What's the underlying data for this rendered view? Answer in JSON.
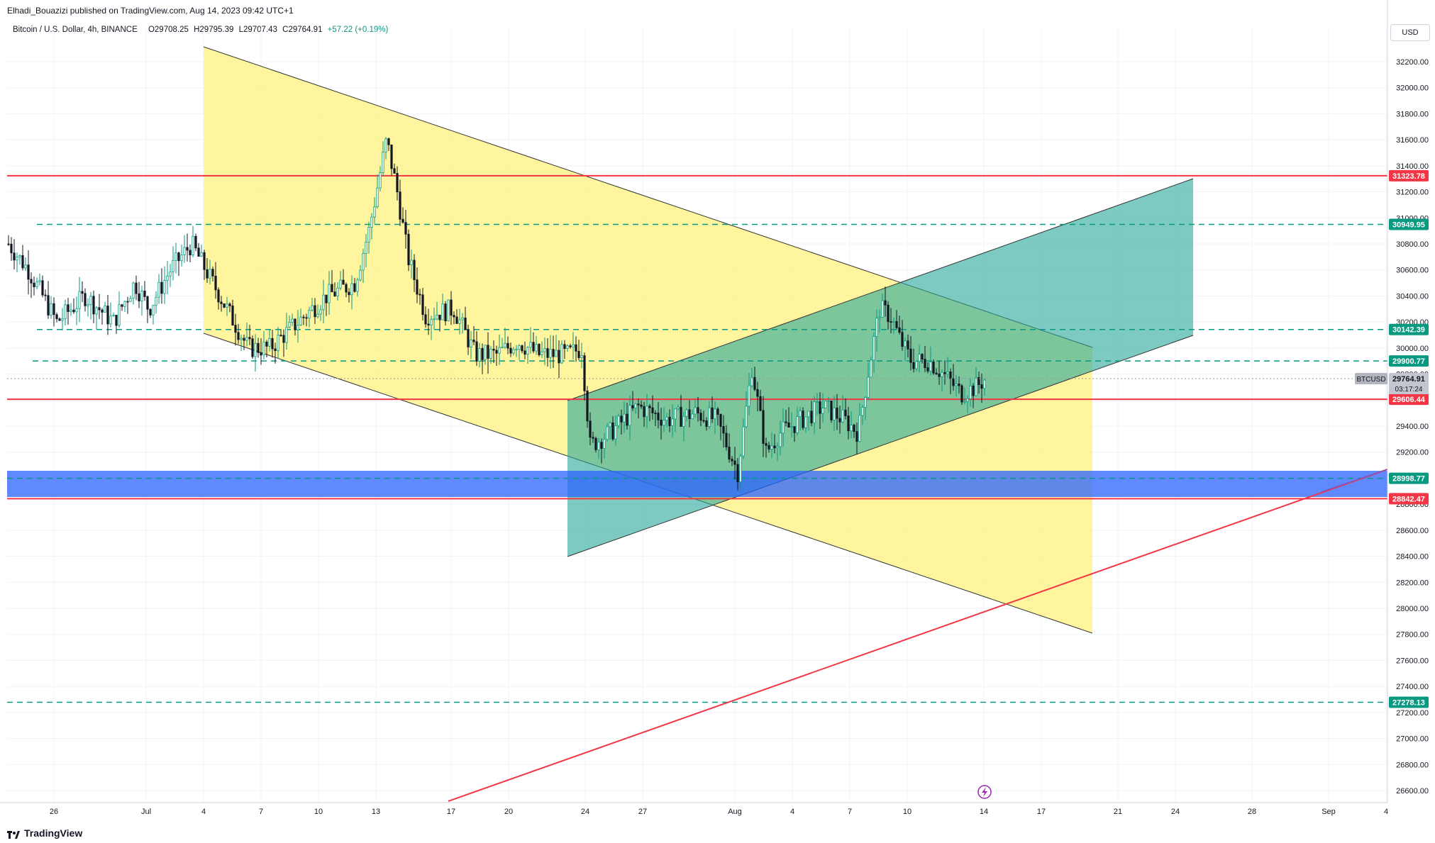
{
  "header": {
    "published_line": "Elhadi_Bouazizi published on TradingView.com, Aug 14, 2023 09:42 UTC+1"
  },
  "ohlc": {
    "symbol_line": "Bitcoin / U.S. Dollar, 4h, BINANCE",
    "open": "O29708.25",
    "high": "H29795.39",
    "low": "L29707.43",
    "close": "C29764.91",
    "change": "+57.22 (+0.19%)"
  },
  "currency": "USD",
  "footer": {
    "brand": "TradingView"
  },
  "colors": {
    "up": "#089981",
    "down": "#131722",
    "red_level": "#f23645",
    "teal_level": "#089981",
    "yellow_fill": "#fff176",
    "teal_fill": "#26a69a",
    "blue_zone": "#2962ff"
  },
  "chart_data": {
    "type": "candlestick",
    "interval": "4h",
    "ylim": [
      26400,
      32400
    ],
    "y_ticks": [
      26600,
      26800,
      27000,
      27200,
      27400,
      27600,
      27800,
      28000,
      28200,
      28400,
      28600,
      28800,
      29000,
      29200,
      29400,
      29600,
      29800,
      30000,
      30200,
      30400,
      30600,
      30800,
      31000,
      31200,
      31400,
      31600,
      31800,
      32000,
      32200
    ],
    "x_ticks": [
      "26",
      "Jul",
      "4",
      "7",
      "10",
      "13",
      "17",
      "20",
      "24",
      "27",
      "Aug",
      "4",
      "7",
      "10",
      "14",
      "17",
      "21",
      "24",
      "28",
      "Sep",
      "4"
    ],
    "price_labels": [
      {
        "value": "31323.78",
        "color": "#f23645",
        "style": "solid"
      },
      {
        "value": "30949.95",
        "color": "#089981",
        "style": "dashed"
      },
      {
        "value": "30142.39",
        "color": "#089981",
        "style": "dashed"
      },
      {
        "value": "29900.77",
        "color": "#089981",
        "style": "dashed"
      },
      {
        "value": "29606.44",
        "color": "#f23645",
        "style": "solid"
      },
      {
        "value": "28998.77",
        "color": "#089981",
        "style": "dashed"
      },
      {
        "value": "28842.47",
        "color": "#f23645",
        "style": "solid"
      },
      {
        "value": "27278.13",
        "color": "#089981",
        "style": "dashed"
      }
    ],
    "last_price": {
      "symbol": "BTCUSD",
      "value": "29764.91",
      "countdown": "03:17:24"
    },
    "zones": {
      "blue": [
        28842.47,
        28998.77
      ]
    },
    "candles_ohlc_sample": [
      [
        30400,
        30700,
        30000,
        30300
      ],
      [
        30300,
        30500,
        29900,
        30100
      ],
      [
        30100,
        30800,
        29600,
        30600
      ],
      [
        30600,
        31400,
        30300,
        31100
      ],
      [
        31100,
        31200,
        30300,
        30500
      ],
      [
        30500,
        30600,
        29900,
        30200
      ],
      [
        30200,
        31800,
        30100,
        31700
      ],
      [
        31700,
        31900,
        30600,
        30900
      ],
      [
        30900,
        30600,
        29700,
        30400
      ],
      [
        30400,
        30500,
        29600,
        30000
      ],
      [
        30000,
        30400,
        29700,
        30200
      ],
      [
        30200,
        30400,
        28900,
        29400
      ],
      [
        29400,
        29800,
        29200,
        29500
      ],
      [
        29500,
        29700,
        29300,
        29500
      ],
      [
        29500,
        30100,
        28700,
        29900
      ],
      [
        29900,
        30000,
        29000,
        29400
      ],
      [
        29400,
        29600,
        29200,
        29500
      ],
      [
        29500,
        29700,
        29300,
        29500
      ],
      [
        29500,
        30800,
        29100,
        30500
      ],
      [
        30500,
        30600,
        29900,
        30000
      ],
      [
        30000,
        30000,
        29600,
        29650
      ],
      [
        29650,
        29800,
        29400,
        29765
      ]
    ]
  }
}
